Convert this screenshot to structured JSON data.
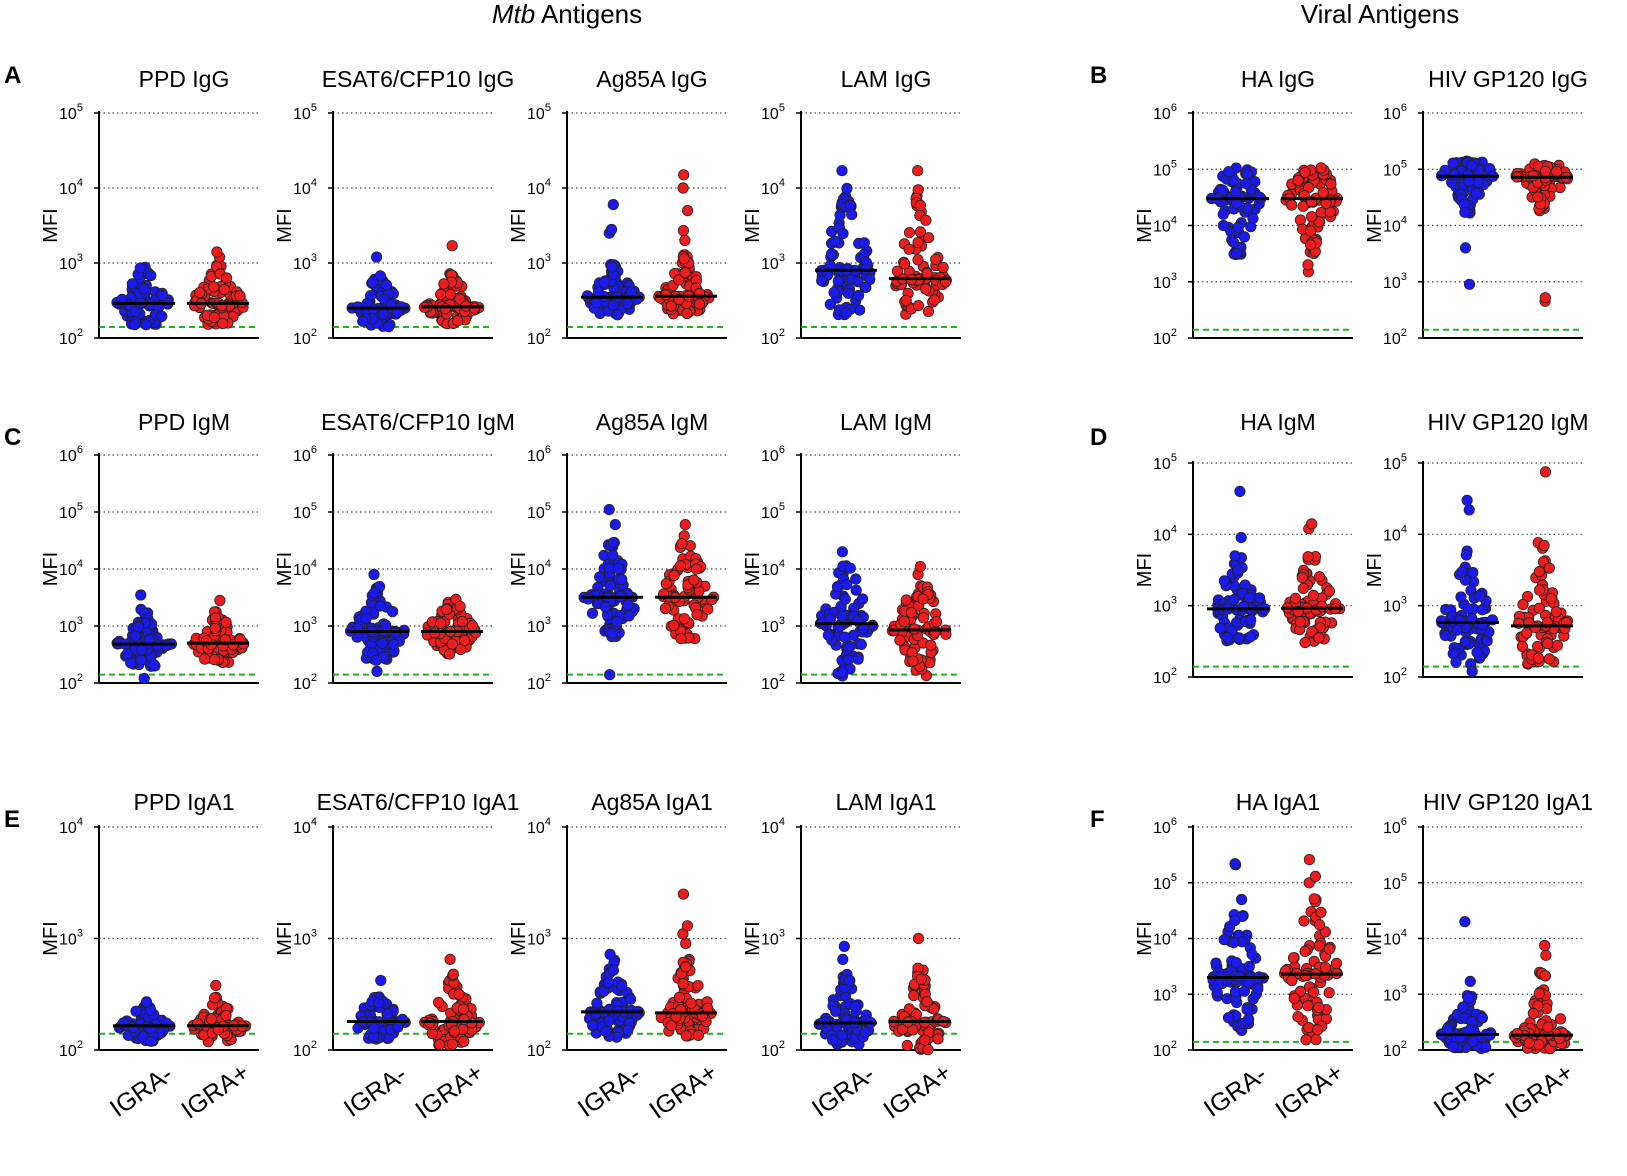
{
  "figure": {
    "section_titles": {
      "mtb": "Mtb Antigens",
      "viral": "Viral Antigens"
    },
    "panel_letters": [
      "A",
      "B",
      "C",
      "D",
      "E",
      "F"
    ],
    "colors": {
      "igra_neg": "#1a1aee",
      "igra_pos": "#ee1c1c",
      "median": "#000000",
      "threshold": "#22b022",
      "grid": "#444444"
    }
  },
  "chart_data": [
    {
      "type": "scatter",
      "panel": "A",
      "title": "PPD IgG",
      "ylabel": "MFI",
      "yscale": "log",
      "ylim_exp": [
        2,
        5
      ],
      "yticks": [
        "10^2",
        "10^3",
        "10^4",
        "10^5"
      ],
      "categories": [
        "IGRA-",
        "IGRA+"
      ],
      "threshold": 140,
      "series": [
        {
          "name": "IGRA-",
          "median": 290,
          "min": 150,
          "max": 950,
          "n": 80,
          "outliers": []
        },
        {
          "name": "IGRA+",
          "median": 290,
          "min": 150,
          "max": 1000,
          "n": 80,
          "outliers": [
            1200,
            1400
          ]
        }
      ]
    },
    {
      "type": "scatter",
      "panel": "A",
      "title": "ESAT6/CFP10 IgG",
      "ylabel": "MFI",
      "yscale": "log",
      "ylim_exp": [
        2,
        5
      ],
      "yticks": [
        "10^2",
        "10^3",
        "10^4",
        "10^5"
      ],
      "categories": [
        "IGRA-",
        "IGRA+"
      ],
      "threshold": 140,
      "series": [
        {
          "name": "IGRA-",
          "median": 250,
          "min": 140,
          "max": 750,
          "n": 80,
          "outliers": [
            1200
          ]
        },
        {
          "name": "IGRA+",
          "median": 260,
          "min": 150,
          "max": 800,
          "n": 80,
          "outliers": [
            1700
          ]
        }
      ]
    },
    {
      "type": "scatter",
      "panel": "A",
      "title": "Ag85A IgG",
      "ylabel": "MFI",
      "yscale": "log",
      "ylim_exp": [
        2,
        5
      ],
      "yticks": [
        "10^2",
        "10^3",
        "10^4",
        "10^5"
      ],
      "categories": [
        "IGRA-",
        "IGRA+"
      ],
      "threshold": 140,
      "series": [
        {
          "name": "IGRA-",
          "median": 350,
          "min": 200,
          "max": 1000,
          "n": 80,
          "outliers": [
            2500,
            2800,
            6000
          ]
        },
        {
          "name": "IGRA+",
          "median": 360,
          "min": 200,
          "max": 1300,
          "n": 80,
          "outliers": [
            2000,
            2700,
            5000,
            10000,
            15000
          ]
        }
      ]
    },
    {
      "type": "scatter",
      "panel": "A",
      "title": "LAM IgG",
      "ylabel": "MFI",
      "yscale": "log",
      "ylim_exp": [
        2,
        5
      ],
      "yticks": [
        "10^2",
        "10^3",
        "10^4",
        "10^5"
      ],
      "categories": [
        "IGRA-",
        "IGRA+"
      ],
      "threshold": 140,
      "series": [
        {
          "name": "IGRA-",
          "median": 800,
          "min": 200,
          "max": 10000,
          "n": 80,
          "outliers": [
            17000
          ]
        },
        {
          "name": "IGRA+",
          "median": 620,
          "min": 200,
          "max": 11000,
          "n": 80,
          "outliers": [
            17000
          ]
        }
      ]
    },
    {
      "type": "scatter",
      "panel": "B",
      "title": "HA IgG",
      "ylabel": "MFI",
      "yscale": "log",
      "ylim_exp": [
        2,
        6
      ],
      "yticks": [
        "10^2",
        "10^3",
        "10^4",
        "10^5",
        "10^6"
      ],
      "categories": [
        "IGRA-",
        "IGRA+"
      ],
      "threshold": 140,
      "series": [
        {
          "name": "IGRA-",
          "median": 30000,
          "min": 2700,
          "max": 110000,
          "n": 80,
          "outliers": []
        },
        {
          "name": "IGRA+",
          "median": 30000,
          "min": 3000,
          "max": 110000,
          "n": 80,
          "outliers": [
            1500,
            2000
          ]
        }
      ]
    },
    {
      "type": "scatter",
      "panel": "B",
      "title": "HIV GP120 IgG",
      "ylabel": "MFI",
      "yscale": "log",
      "ylim_exp": [
        2,
        6
      ],
      "yticks": [
        "10^2",
        "10^3",
        "10^4",
        "10^5",
        "10^6"
      ],
      "categories": [
        "IGRA-",
        "IGRA+"
      ],
      "threshold": 140,
      "series": [
        {
          "name": "IGRA-",
          "median": 75000,
          "min": 15000,
          "max": 140000,
          "n": 80,
          "outliers": [
            900,
            4000
          ]
        },
        {
          "name": "IGRA+",
          "median": 72000,
          "min": 15000,
          "max": 130000,
          "n": 80,
          "outliers": [
            450,
            520
          ]
        }
      ]
    },
    {
      "type": "scatter",
      "panel": "C",
      "title": "PPD IgM",
      "ylabel": "MFI",
      "yscale": "log",
      "ylim_exp": [
        2,
        6
      ],
      "yticks": [
        "10^2",
        "10^3",
        "10^4",
        "10^5",
        "10^6"
      ],
      "categories": [
        "IGRA-",
        "IGRA+"
      ],
      "threshold": 140,
      "series": [
        {
          "name": "IGRA-",
          "median": 480,
          "min": 190,
          "max": 2000,
          "n": 80,
          "outliers": [
            120,
            3500
          ]
        },
        {
          "name": "IGRA+",
          "median": 500,
          "min": 220,
          "max": 1800,
          "n": 80,
          "outliers": [
            2800
          ]
        }
      ]
    },
    {
      "type": "scatter",
      "panel": "C",
      "title": "ESAT6/CFP10 IgM",
      "ylabel": "MFI",
      "yscale": "log",
      "ylim_exp": [
        2,
        6
      ],
      "yticks": [
        "10^2",
        "10^3",
        "10^4",
        "10^5",
        "10^6"
      ],
      "categories": [
        "IGRA-",
        "IGRA+"
      ],
      "threshold": 140,
      "series": [
        {
          "name": "IGRA-",
          "median": 800,
          "min": 250,
          "max": 5000,
          "n": 80,
          "outliers": [
            160,
            8000
          ]
        },
        {
          "name": "IGRA+",
          "median": 800,
          "min": 300,
          "max": 3000,
          "n": 80,
          "outliers": []
        }
      ]
    },
    {
      "type": "scatter",
      "panel": "C",
      "title": "Ag85A IgM",
      "ylabel": "MFI",
      "yscale": "log",
      "ylim_exp": [
        2,
        6
      ],
      "yticks": [
        "10^2",
        "10^3",
        "10^4",
        "10^5",
        "10^6"
      ],
      "categories": [
        "IGRA-",
        "IGRA+"
      ],
      "threshold": 140,
      "series": [
        {
          "name": "IGRA-",
          "median": 3200,
          "min": 600,
          "max": 30000,
          "n": 80,
          "outliers": [
            140,
            60000,
            110000
          ]
        },
        {
          "name": "IGRA+",
          "median": 3200,
          "min": 600,
          "max": 40000,
          "n": 80,
          "outliers": [
            60000
          ]
        }
      ]
    },
    {
      "type": "scatter",
      "panel": "C",
      "title": "LAM IgM",
      "ylabel": "MFI",
      "yscale": "log",
      "ylim_exp": [
        2,
        6
      ],
      "yticks": [
        "10^2",
        "10^3",
        "10^4",
        "10^5",
        "10^6"
      ],
      "categories": [
        "IGRA-",
        "IGRA+"
      ],
      "threshold": 140,
      "series": [
        {
          "name": "IGRA-",
          "median": 1100,
          "min": 110,
          "max": 12000,
          "n": 80,
          "outliers": [
            20000
          ]
        },
        {
          "name": "IGRA+",
          "median": 850,
          "min": 130,
          "max": 6000,
          "n": 80,
          "outliers": [
            8000,
            11000
          ]
        }
      ]
    },
    {
      "type": "scatter",
      "panel": "D",
      "title": "HA IgM",
      "ylabel": "MFI",
      "yscale": "log",
      "ylim_exp": [
        2,
        5
      ],
      "yticks": [
        "10^2",
        "10^3",
        "10^4",
        "10^5"
      ],
      "categories": [
        "IGRA-",
        "IGRA+"
      ],
      "threshold": 140,
      "series": [
        {
          "name": "IGRA-",
          "median": 900,
          "min": 300,
          "max": 6000,
          "n": 80,
          "outliers": [
            9000,
            40000
          ]
        },
        {
          "name": "IGRA+",
          "median": 920,
          "min": 300,
          "max": 5000,
          "n": 80,
          "outliers": [
            12000,
            14000
          ]
        }
      ]
    },
    {
      "type": "scatter",
      "panel": "D",
      "title": "HIV GP120 IgM",
      "ylabel": "MFI",
      "yscale": "log",
      "ylim_exp": [
        2,
        5
      ],
      "yticks": [
        "10^2",
        "10^3",
        "10^4",
        "10^5"
      ],
      "categories": [
        "IGRA-",
        "IGRA+"
      ],
      "threshold": 140,
      "series": [
        {
          "name": "IGRA-",
          "median": 580,
          "min": 150,
          "max": 6000,
          "n": 80,
          "outliers": [
            120,
            22000,
            30000
          ]
        },
        {
          "name": "IGRA+",
          "median": 520,
          "min": 140,
          "max": 8000,
          "n": 80,
          "outliers": [
            75000
          ]
        }
      ]
    },
    {
      "type": "scatter",
      "panel": "E",
      "title": "PPD IgA1",
      "ylabel": "MFI",
      "yscale": "log",
      "ylim_exp": [
        2,
        4
      ],
      "yticks": [
        "10^2",
        "10^3",
        "10^4"
      ],
      "categories": [
        "IGRA-",
        "IGRA+"
      ],
      "threshold": 140,
      "series": [
        {
          "name": "IGRA-",
          "median": 165,
          "min": 115,
          "max": 250,
          "n": 75,
          "outliers": [
            270
          ]
        },
        {
          "name": "IGRA+",
          "median": 165,
          "min": 115,
          "max": 300,
          "n": 75,
          "outliers": [
            380
          ]
        }
      ]
    },
    {
      "type": "scatter",
      "panel": "E",
      "title": "ESAT6/CFP10 IgA1",
      "ylabel": "MFI",
      "yscale": "log",
      "ylim_exp": [
        2,
        4
      ],
      "yticks": [
        "10^2",
        "10^3",
        "10^4"
      ],
      "categories": [
        "IGRA-",
        "IGRA+"
      ],
      "threshold": 140,
      "series": [
        {
          "name": "IGRA-",
          "median": 180,
          "min": 120,
          "max": 300,
          "n": 75,
          "outliers": [
            420
          ]
        },
        {
          "name": "IGRA+",
          "median": 180,
          "min": 110,
          "max": 500,
          "n": 75,
          "outliers": [
            650
          ]
        }
      ]
    },
    {
      "type": "scatter",
      "panel": "E",
      "title": "Ag85A IgA1",
      "ylabel": "MFI",
      "yscale": "log",
      "ylim_exp": [
        2,
        4
      ],
      "yticks": [
        "10^2",
        "10^3",
        "10^4"
      ],
      "categories": [
        "IGRA-",
        "IGRA+"
      ],
      "threshold": 140,
      "series": [
        {
          "name": "IGRA-",
          "median": 220,
          "min": 130,
          "max": 650,
          "n": 80,
          "outliers": [
            720
          ]
        },
        {
          "name": "IGRA+",
          "median": 215,
          "min": 130,
          "max": 700,
          "n": 80,
          "outliers": [
            900,
            1100,
            1300,
            2500
          ]
        }
      ]
    },
    {
      "type": "scatter",
      "panel": "E",
      "title": "LAM IgA1",
      "ylabel": "MFI",
      "yscale": "log",
      "ylim_exp": [
        2,
        4
      ],
      "yticks": [
        "10^2",
        "10^3",
        "10^4"
      ],
      "categories": [
        "IGRA-",
        "IGRA+"
      ],
      "threshold": 140,
      "series": [
        {
          "name": "IGRA-",
          "median": 175,
          "min": 110,
          "max": 500,
          "n": 80,
          "outliers": [
            650,
            850
          ]
        },
        {
          "name": "IGRA+",
          "median": 180,
          "min": 100,
          "max": 550,
          "n": 80,
          "outliers": [
            1000
          ]
        }
      ]
    },
    {
      "type": "scatter",
      "panel": "F",
      "title": "HA IgA1",
      "ylabel": "MFI",
      "yscale": "log",
      "ylim_exp": [
        2,
        6
      ],
      "yticks": [
        "10^2",
        "10^3",
        "10^4",
        "10^5",
        "10^6"
      ],
      "categories": [
        "IGRA-",
        "IGRA+"
      ],
      "threshold": 140,
      "series": [
        {
          "name": "IGRA-",
          "median": 2000,
          "min": 200,
          "max": 30000,
          "n": 80,
          "outliers": [
            50000,
            210000,
            220000
          ]
        },
        {
          "name": "IGRA+",
          "median": 2300,
          "min": 130,
          "max": 60000,
          "n": 80,
          "outliers": [
            100000,
            130000,
            260000
          ]
        }
      ]
    },
    {
      "type": "scatter",
      "panel": "F",
      "title": "HIV GP120 IgA1",
      "ylabel": "MFI",
      "yscale": "log",
      "ylim_exp": [
        2,
        6
      ],
      "yticks": [
        "10^2",
        "10^3",
        "10^4",
        "10^5",
        "10^6"
      ],
      "categories": [
        "IGRA-",
        "IGRA+"
      ],
      "threshold": 140,
      "series": [
        {
          "name": "IGRA-",
          "median": 190,
          "min": 100,
          "max": 1000,
          "n": 80,
          "outliers": [
            1700,
            20000
          ]
        },
        {
          "name": "IGRA+",
          "median": 185,
          "min": 100,
          "max": 2500,
          "n": 80,
          "outliers": [
            5000,
            7500
          ]
        }
      ]
    }
  ]
}
